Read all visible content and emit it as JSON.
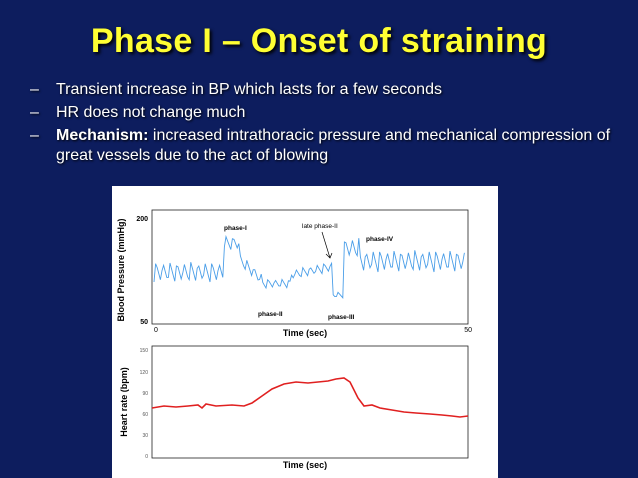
{
  "slide": {
    "title": "Phase I – Onset of straining",
    "bullets": [
      {
        "dash": "–",
        "text": "Transient increase in BP which lasts for a few seconds"
      },
      {
        "dash": "–",
        "text": "HR does not change much"
      },
      {
        "dash": "–",
        "bold": "Mechanism:",
        "text": " increased intrathoracic pressure and mechanical compression of great vessels due to the act of blowing"
      }
    ]
  },
  "colors": {
    "background": "#0d1d5e",
    "title": "#ffff33",
    "bp_trace": "#4a9ee8",
    "hr_trace": "#e02020"
  },
  "figure": {
    "bp_panel": {
      "ylabel": "Blood Pressure (mmHg)",
      "xlabel": "Time (sec)",
      "y_top_label": "200",
      "y_bottom_label": "50",
      "x_left_label": "0",
      "x_right_label": "50",
      "annotations": {
        "phase1": "phase-I",
        "late_phase2": "late phase-II",
        "phase4": "phase-IV",
        "phase2": "phase-II",
        "phase3": "phase-III"
      }
    },
    "hr_panel": {
      "ylabel": "Heart rate (bpm)",
      "xlabel": "Time (sec)",
      "y_ticks": [
        "150",
        "120",
        "90",
        "60",
        "30",
        "0"
      ]
    }
  }
}
